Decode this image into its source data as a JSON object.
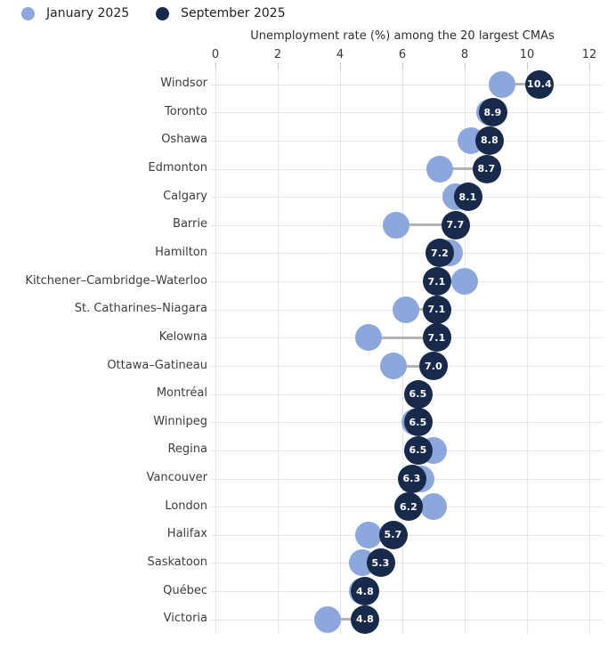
{
  "legend": {
    "items": [
      {
        "label": "January 2025",
        "color": "#8ca7db"
      },
      {
        "label": "September 2025",
        "color": "#172a4c"
      }
    ]
  },
  "chart_data": {
    "type": "scatter",
    "subtype": "dumbbell-dot-plot",
    "title": "Unemployment rate (%) among the 20 largest CMAs",
    "xlabel": "",
    "ylabel": "",
    "xlim": [
      0,
      12
    ],
    "xticks": [
      0,
      2,
      4,
      6,
      8,
      10,
      12
    ],
    "grid": true,
    "legend_position": "top-left",
    "categories": [
      "Windsor",
      "Toronto",
      "Oshawa",
      "Edmonton",
      "Calgary",
      "Barrie",
      "Hamilton",
      "Kitchener–Cambridge–Waterloo",
      "St. Catharines–Niagara",
      "Kelowna",
      "Ottawa–Gatineau",
      "Montréal",
      "Winnipeg",
      "Regina",
      "Vancouver",
      "London",
      "Halifax",
      "Saskatoon",
      "Québec",
      "Victoria"
    ],
    "series": [
      {
        "name": "January 2025",
        "color": "#8ca7db",
        "data_labels": false,
        "values": [
          9.2,
          8.8,
          8.2,
          7.2,
          7.7,
          5.8,
          7.5,
          8.0,
          6.1,
          4.9,
          5.7,
          6.5,
          6.4,
          7.0,
          6.6,
          7.0,
          4.9,
          4.7,
          4.7,
          3.6
        ]
      },
      {
        "name": "September 2025",
        "color": "#172a4c",
        "data_labels": true,
        "label_color": "#ffffff",
        "values": [
          10.4,
          8.9,
          8.8,
          8.7,
          8.1,
          7.7,
          7.2,
          7.1,
          7.1,
          7.1,
          7.0,
          6.5,
          6.5,
          6.5,
          6.3,
          6.2,
          5.7,
          5.3,
          4.8,
          4.8
        ]
      }
    ]
  }
}
